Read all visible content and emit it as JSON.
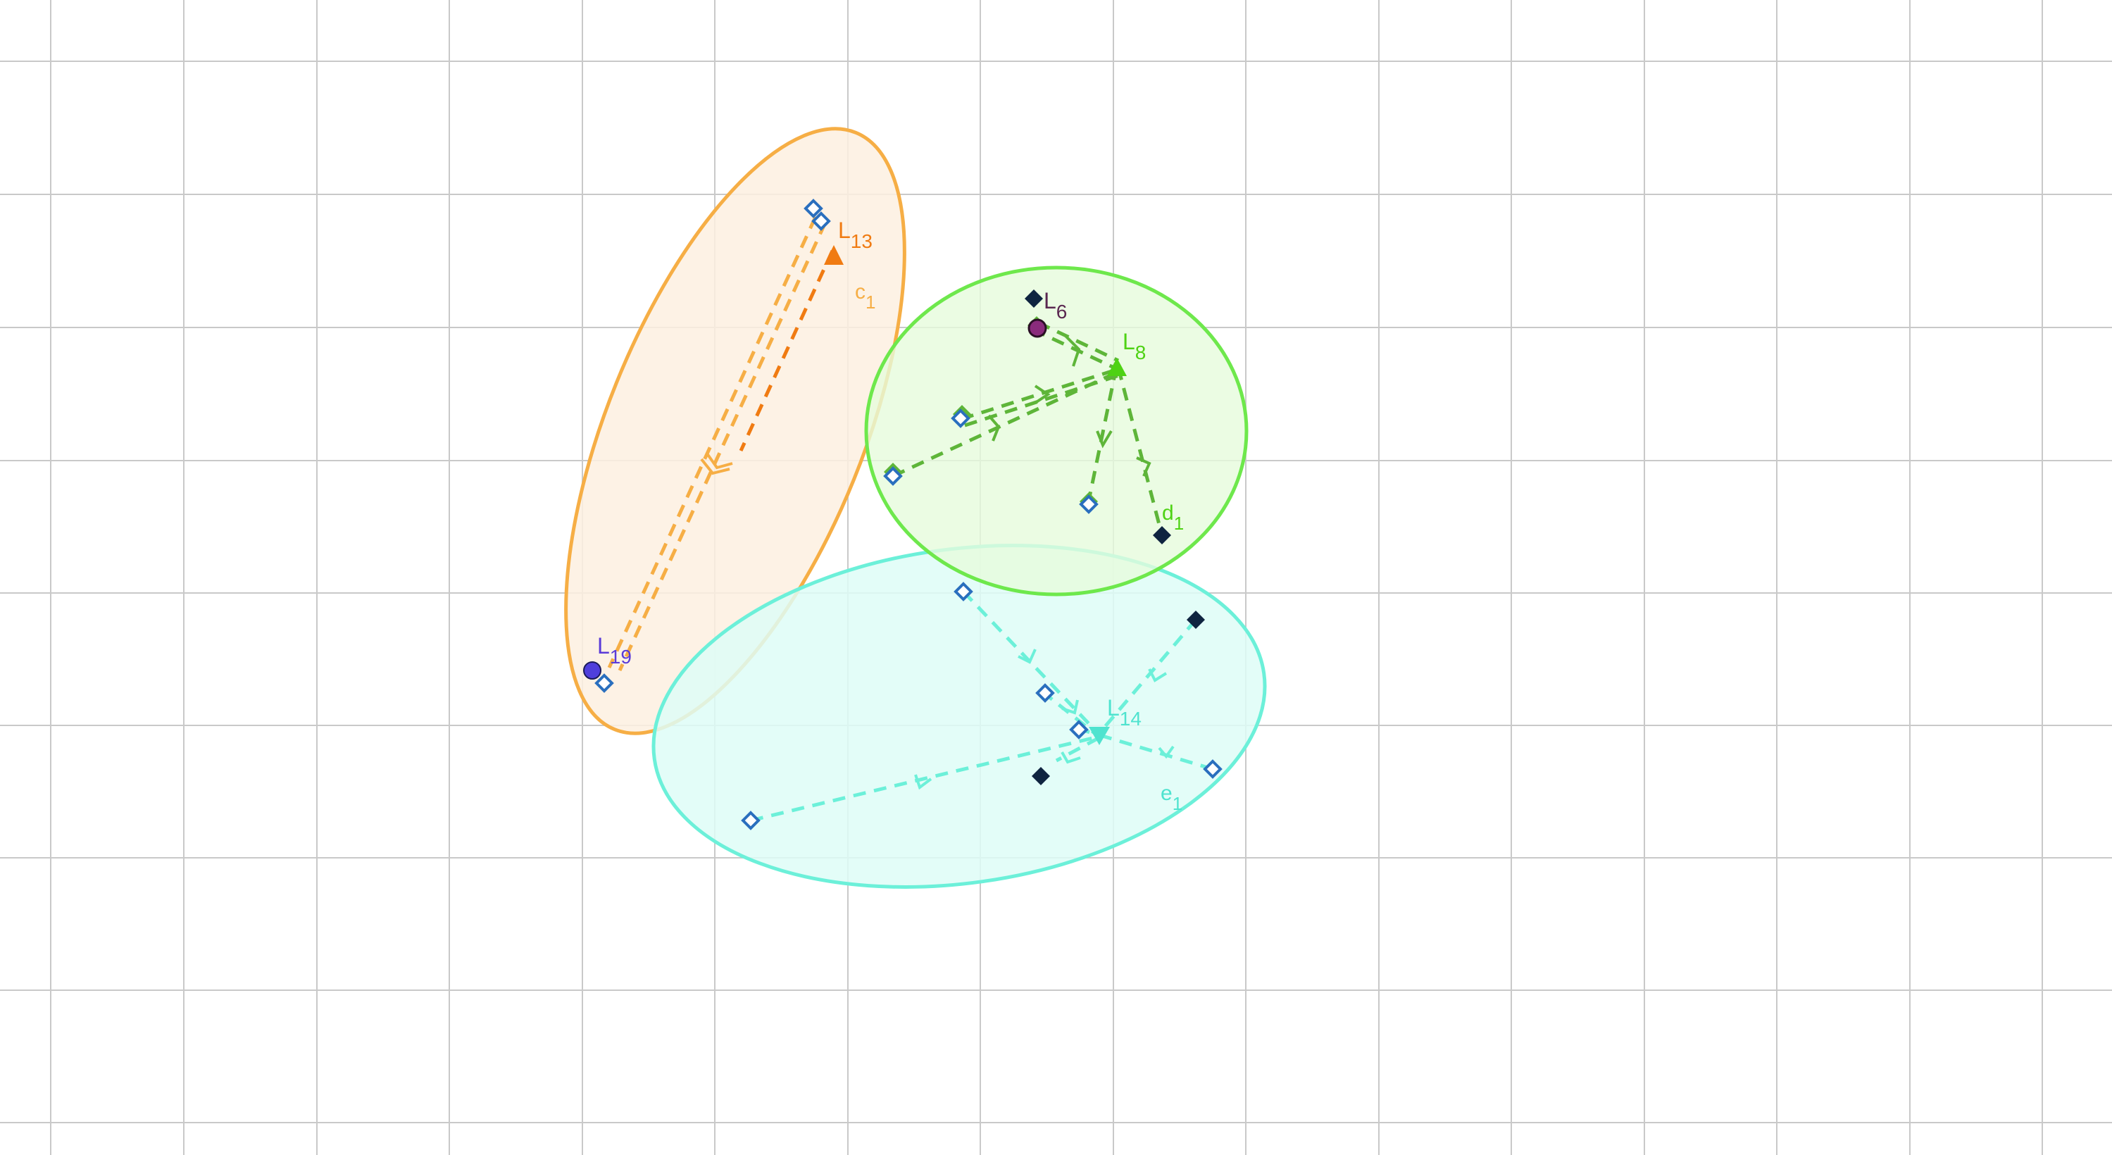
{
  "canvas": {
    "background": "#ffffff",
    "grid_color": "#c9c9c9"
  },
  "colors": {
    "orange": "#f6ae45",
    "orange_fill": "#fdf0e0",
    "orange_dark": "#f07b12",
    "green": "#6ee84c",
    "green_fill": "#e6fbdc",
    "green_dark": "#5eb539",
    "green_label": "#4ed214",
    "cyan": "#6cf0d9",
    "cyan_fill": "#defdf7",
    "cyan_label": "#4fe3cf",
    "blue_point": "#2a6fbe",
    "navy_point": "#0f2440",
    "purple_point": "#4f3fdc",
    "magenta_point": "#8a2b7c",
    "label_purple": "#5a3bd8",
    "label_dark": "#5a2750"
  },
  "labels": {
    "c1": {
      "main": "c",
      "sub": "1"
    },
    "d1": {
      "main": "d",
      "sub": "1"
    },
    "e1": {
      "main": "e",
      "sub": "1"
    },
    "L13": {
      "main": "L",
      "sub": "13"
    },
    "L19": {
      "main": "L",
      "sub": "19"
    },
    "L6": {
      "main": "L",
      "sub": "6"
    },
    "L8": {
      "main": "L",
      "sub": "8"
    },
    "L14": {
      "main": "L",
      "sub": "14"
    }
  }
}
